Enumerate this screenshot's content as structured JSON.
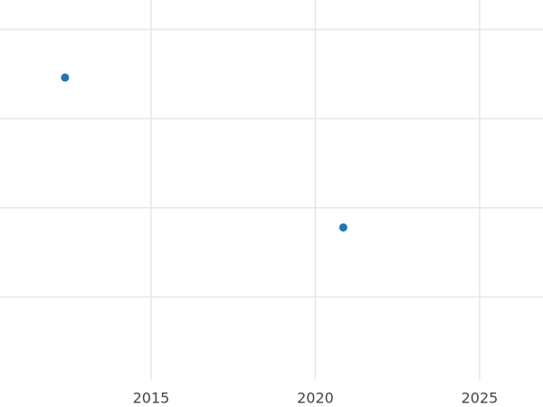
{
  "chart_data": {
    "type": "scatter",
    "x": [
      2012.38,
      2020.85
    ],
    "values": [
      3.46,
      1.78
    ],
    "color": "#1f77b4",
    "xlim": [
      2010.4,
      2026.93
    ],
    "xticks": [
      2015,
      2020,
      2025
    ],
    "ylim": [
      0,
      4.33
    ],
    "yticks": [
      1,
      2,
      3,
      4
    ],
    "grid": true
  }
}
